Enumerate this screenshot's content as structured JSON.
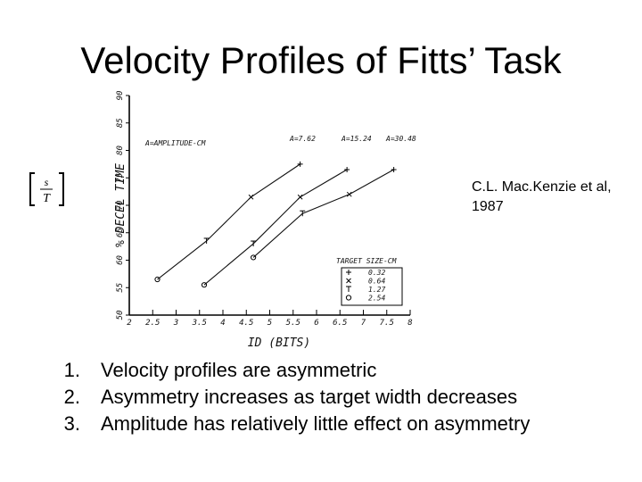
{
  "slide": {
    "title": "Velocity Profiles of Fitts’ Task",
    "citation_line1": "C.L. Mac.Kenzie et al,",
    "citation_line2": "1987",
    "formula": {
      "numerator": "s",
      "denominator": "T"
    },
    "bullets": [
      {
        "number": "1.",
        "text": "Velocity profiles are asymmetric"
      },
      {
        "number": "2.",
        "text": "Asymmetry increases as target width decreases"
      },
      {
        "number": "3.",
        "text": "Amplitude has relatively little effect on asymmetry"
      }
    ]
  },
  "chart_data": {
    "type": "line",
    "xlabel": "ID (BITS)",
    "ylabel": "% DECEL TIME",
    "xlim": [
      2,
      8
    ],
    "ylim": [
      50,
      90
    ],
    "x_ticks": [
      2,
      2.5,
      3,
      3.5,
      4,
      4.5,
      5,
      5.5,
      6,
      6.5,
      7,
      7.5,
      8
    ],
    "x_tick_labels": [
      "2",
      "2.5",
      "3",
      "3.5",
      "4",
      "4.5",
      "5",
      "5.5",
      "6",
      "6.5",
      "7",
      "7.5",
      "8"
    ],
    "y_ticks": [
      50,
      55,
      60,
      65,
      70,
      75,
      80,
      85,
      90
    ],
    "y_tick_labels": [
      "50",
      "55",
      "60",
      "65",
      "70",
      "75",
      "80",
      "85",
      "90"
    ],
    "legend_title": "A=AMPLITUDE-CM",
    "series": [
      {
        "name": "A=7.62",
        "x": [
          2.6,
          3.65,
          4.6,
          5.65
        ],
        "y": [
          56.5,
          63.5,
          71.5,
          77.5
        ]
      },
      {
        "name": "A=15.24",
        "x": [
          3.6,
          4.65,
          5.65,
          6.65
        ],
        "y": [
          55.5,
          63.0,
          71.5,
          76.5
        ]
      },
      {
        "name": "A=30.48",
        "x": [
          4.65,
          5.7,
          6.7,
          7.65
        ],
        "y": [
          60.5,
          68.5,
          72.0,
          76.5
        ]
      }
    ],
    "inset_legend": {
      "title": "TARGET SIZE-CM",
      "items": [
        {
          "marker": "+",
          "label": "0.32"
        },
        {
          "marker": "x",
          "label": "0.64"
        },
        {
          "marker": "T",
          "label": "1.27"
        },
        {
          "marker": "o",
          "label": "2.54"
        }
      ]
    },
    "points": [
      {
        "x": 2.6,
        "y": 56.5,
        "marker": "o"
      },
      {
        "x": 3.65,
        "y": 63.5,
        "marker": "T"
      },
      {
        "x": 4.6,
        "y": 71.5,
        "marker": "x"
      },
      {
        "x": 5.65,
        "y": 77.5,
        "marker": "+"
      },
      {
        "x": 3.6,
        "y": 55.5,
        "marker": "o"
      },
      {
        "x": 4.65,
        "y": 63.0,
        "marker": "T"
      },
      {
        "x": 5.65,
        "y": 71.5,
        "marker": "x"
      },
      {
        "x": 6.65,
        "y": 76.5,
        "marker": "+"
      },
      {
        "x": 4.65,
        "y": 60.5,
        "marker": "o"
      },
      {
        "x": 5.7,
        "y": 68.5,
        "marker": "T"
      },
      {
        "x": 6.7,
        "y": 72.0,
        "marker": "x"
      },
      {
        "x": 7.65,
        "y": 76.5,
        "marker": "+"
      }
    ]
  }
}
